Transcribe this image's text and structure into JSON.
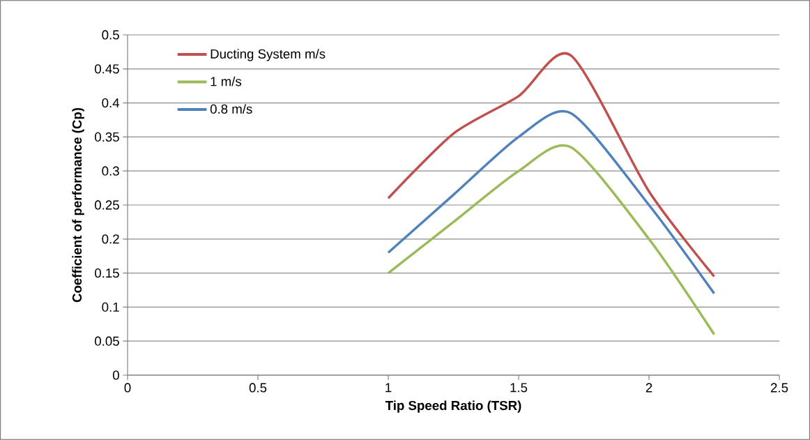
{
  "chart_data": {
    "type": "line",
    "xlabel": "Tip Speed Ratio (TSR)",
    "ylabel": "Coefficient of performance (Cp)",
    "x": [
      1,
      1.25,
      1.5,
      1.7,
      2,
      2.25
    ],
    "series": [
      {
        "name": "Ducting System m/s",
        "color": "#c0504d",
        "values": [
          0.26,
          0.355,
          0.41,
          0.47,
          0.27,
          0.145
        ]
      },
      {
        "name": "1 m/s",
        "color": "#9bbb59",
        "values": [
          0.15,
          0.225,
          0.3,
          0.335,
          0.2,
          0.06
        ]
      },
      {
        "name": "0.8 m/s",
        "color": "#4f81bd",
        "values": [
          0.18,
          0.265,
          0.35,
          0.385,
          0.25,
          0.12
        ]
      }
    ],
    "xlim": [
      0,
      2.5
    ],
    "xticks": [
      0,
      0.5,
      1,
      1.5,
      2,
      2.5
    ],
    "ylim": [
      0,
      0.5
    ],
    "yticks": [
      0,
      0.05,
      0.1,
      0.15,
      0.2,
      0.25,
      0.3,
      0.35,
      0.4,
      0.45,
      0.5
    ],
    "grid": "y",
    "legend": "top left",
    "marker": "none",
    "line_style": "solid"
  }
}
